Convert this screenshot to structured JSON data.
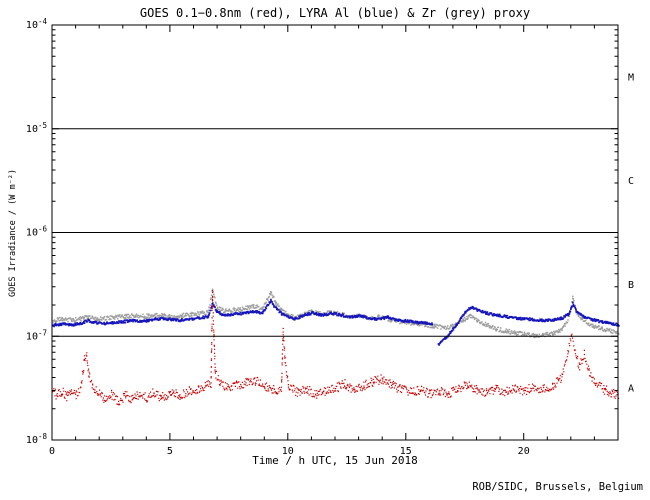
{
  "footer": {
    "credit": "ROB/SIDC, Brussels, Belgium"
  },
  "chart_data": {
    "type": "scatter",
    "title": "GOES 0.1−0.8nm (red), LYRA Al (blue) & Zr (grey) proxy",
    "xlabel": "Time / h UTC, 15 Jun 2018",
    "ylabel": "GOES Irradiance / (W m⁻²)",
    "axis_color": "#000000",
    "x_range": [
      0,
      24
    ],
    "x_major_ticks": [
      0,
      5,
      10,
      15,
      20
    ],
    "x_minor_step": 1,
    "y_decade_exponents": [
      -4,
      -5,
      -6,
      -7,
      -8
    ],
    "y_log_range": [
      -8,
      -4
    ],
    "grid": "off",
    "legend": "in title",
    "hlines": [
      1e-05,
      1e-06,
      1e-07
    ],
    "flare_classes": [
      {
        "label": "M",
        "between": [
          1e-05,
          0.0001
        ]
      },
      {
        "label": "C",
        "between": [
          1e-06,
          1e-05
        ]
      },
      {
        "label": "B",
        "between": [
          1e-07,
          1e-06
        ]
      },
      {
        "label": "A",
        "between": [
          1e-08,
          1e-07
        ]
      }
    ],
    "series": [
      {
        "name": "LYRA Zr proxy",
        "color": "#9e9e9e",
        "dot_size": 1.5,
        "jitter": 0.02,
        "segments": [
          [
            [
              0,
              1.44e-07
            ],
            [
              0.4,
              1.49e-07
            ],
            [
              0.8,
              1.46e-07
            ],
            [
              1.2,
              1.5e-07
            ],
            [
              1.5,
              1.55e-07
            ],
            [
              1.9,
              1.5e-07
            ],
            [
              2.3,
              1.52e-07
            ],
            [
              2.7,
              1.55e-07
            ],
            [
              3.1,
              1.58e-07
            ],
            [
              3.5,
              1.61e-07
            ],
            [
              3.9,
              1.58e-07
            ],
            [
              4.3,
              1.62e-07
            ],
            [
              4.7,
              1.6e-07
            ],
            [
              5.1,
              1.57e-07
            ],
            [
              5.5,
              1.61e-07
            ],
            [
              5.9,
              1.65e-07
            ],
            [
              6.3,
              1.69e-07
            ],
            [
              6.6,
              1.74e-07
            ],
            [
              6.78,
              2.9e-07
            ],
            [
              6.95,
              1.95e-07
            ],
            [
              7.3,
              1.78e-07
            ],
            [
              7.7,
              1.82e-07
            ],
            [
              8.1,
              1.88e-07
            ],
            [
              8.5,
              1.98e-07
            ],
            [
              8.9,
              1.88e-07
            ],
            [
              9.25,
              2.7e-07
            ],
            [
              9.45,
              2.15e-07
            ],
            [
              9.7,
              1.82e-07
            ],
            [
              10.0,
              1.62e-07
            ],
            [
              10.3,
              1.52e-07
            ],
            [
              10.7,
              1.66e-07
            ],
            [
              11.0,
              1.76e-07
            ],
            [
              11.4,
              1.66e-07
            ],
            [
              11.8,
              1.72e-07
            ],
            [
              12.2,
              1.66e-07
            ],
            [
              12.6,
              1.58e-07
            ],
            [
              13.0,
              1.62e-07
            ],
            [
              13.4,
              1.52e-07
            ],
            [
              13.8,
              1.56e-07
            ],
            [
              14.2,
              1.48e-07
            ],
            [
              14.6,
              1.42e-07
            ],
            [
              15.0,
              1.38e-07
            ],
            [
              15.4,
              1.34e-07
            ],
            [
              15.8,
              1.3e-07
            ],
            [
              16.2,
              1.27e-07
            ],
            [
              16.6,
              1.23e-07
            ],
            [
              17.0,
              1.28e-07
            ],
            [
              17.4,
              1.45e-07
            ],
            [
              17.7,
              1.58e-07
            ],
            [
              18.0,
              1.44e-07
            ],
            [
              18.4,
              1.3e-07
            ],
            [
              18.8,
              1.2e-07
            ],
            [
              19.2,
              1.14e-07
            ],
            [
              19.6,
              1.1e-07
            ],
            [
              20.0,
              1.06e-07
            ],
            [
              20.4,
              1.03e-07
            ],
            [
              20.8,
              1.05e-07
            ],
            [
              21.2,
              1.08e-07
            ],
            [
              21.6,
              1.18e-07
            ],
            [
              21.9,
              1.55e-07
            ],
            [
              22.05,
              2.4e-07
            ],
            [
              22.2,
              1.75e-07
            ],
            [
              22.5,
              1.45e-07
            ],
            [
              22.9,
              1.28e-07
            ],
            [
              23.3,
              1.2e-07
            ],
            [
              23.7,
              1.14e-07
            ],
            [
              24,
              1.1e-07
            ]
          ]
        ]
      },
      {
        "name": "LYRA Al proxy",
        "color": "#1515bb",
        "dot_size": 1.7,
        "jitter": 0.012,
        "segments": [
          [
            [
              0,
              1.3e-07
            ],
            [
              0.4,
              1.34e-07
            ],
            [
              0.8,
              1.31e-07
            ],
            [
              1.2,
              1.36e-07
            ],
            [
              1.5,
              1.44e-07
            ],
            [
              1.8,
              1.38e-07
            ],
            [
              2.2,
              1.35e-07
            ],
            [
              2.6,
              1.38e-07
            ],
            [
              3.0,
              1.41e-07
            ],
            [
              3.4,
              1.44e-07
            ],
            [
              3.8,
              1.42e-07
            ],
            [
              4.2,
              1.47e-07
            ],
            [
              4.6,
              1.51e-07
            ],
            [
              5.0,
              1.48e-07
            ],
            [
              5.4,
              1.45e-07
            ],
            [
              5.8,
              1.49e-07
            ],
            [
              6.2,
              1.53e-07
            ],
            [
              6.6,
              1.58e-07
            ],
            [
              6.78,
              2.15e-07
            ],
            [
              6.95,
              1.75e-07
            ],
            [
              7.3,
              1.62e-07
            ],
            [
              7.7,
              1.66e-07
            ],
            [
              8.1,
              1.7e-07
            ],
            [
              8.5,
              1.77e-07
            ],
            [
              8.9,
              1.71e-07
            ],
            [
              9.25,
              2.25e-07
            ],
            [
              9.4,
              1.95e-07
            ],
            [
              9.7,
              1.68e-07
            ],
            [
              10.0,
              1.56e-07
            ],
            [
              10.3,
              1.5e-07
            ],
            [
              10.7,
              1.63e-07
            ],
            [
              11.0,
              1.71e-07
            ],
            [
              11.4,
              1.62e-07
            ],
            [
              11.8,
              1.7e-07
            ],
            [
              12.2,
              1.64e-07
            ],
            [
              12.6,
              1.56e-07
            ],
            [
              13.0,
              1.6e-07
            ],
            [
              13.4,
              1.53e-07
            ],
            [
              13.8,
              1.49e-07
            ],
            [
              14.2,
              1.55e-07
            ],
            [
              14.6,
              1.46e-07
            ],
            [
              15.0,
              1.43e-07
            ],
            [
              15.4,
              1.39e-07
            ],
            [
              15.8,
              1.36e-07
            ],
            [
              16.1,
              1.34e-07
            ]
          ],
          [
            [
              16.35,
              8.5e-08
            ],
            [
              16.7,
              1e-07
            ],
            [
              17.1,
              1.3e-07
            ],
            [
              17.5,
              1.75e-07
            ],
            [
              17.75,
              1.95e-07
            ],
            [
              18.0,
              1.82e-07
            ],
            [
              18.4,
              1.7e-07
            ],
            [
              18.8,
              1.63e-07
            ],
            [
              19.2,
              1.58e-07
            ],
            [
              19.6,
              1.53e-07
            ],
            [
              20.0,
              1.5e-07
            ],
            [
              20.4,
              1.47e-07
            ],
            [
              20.8,
              1.45e-07
            ],
            [
              21.2,
              1.46e-07
            ],
            [
              21.6,
              1.52e-07
            ],
            [
              21.9,
              1.68e-07
            ],
            [
              22.05,
              2.1e-07
            ],
            [
              22.2,
              1.78e-07
            ],
            [
              22.5,
              1.58e-07
            ],
            [
              22.9,
              1.47e-07
            ],
            [
              23.3,
              1.4e-07
            ],
            [
              23.7,
              1.35e-07
            ],
            [
              24,
              1.31e-07
            ]
          ]
        ]
      },
      {
        "name": "GOES 0.1-0.8nm",
        "color": "#cc0000",
        "dot_size": 1.2,
        "jitter": 0.045,
        "segments": [
          [
            [
              0,
              3.1e-08
            ],
            [
              0.2,
              2.7e-08
            ],
            [
              0.4,
              3e-08
            ],
            [
              0.6,
              2.6e-08
            ],
            [
              0.8,
              2.9e-08
            ],
            [
              1.0,
              2.8e-08
            ],
            [
              1.2,
              3.2e-08
            ],
            [
              1.35,
              6e-08
            ],
            [
              1.45,
              6.8e-08
            ],
            [
              1.55,
              4.2e-08
            ],
            [
              1.7,
              3.4e-08
            ],
            [
              1.9,
              2.9e-08
            ],
            [
              2.2,
              2.5e-08
            ],
            [
              2.5,
              2.8e-08
            ],
            [
              2.8,
              2.4e-08
            ],
            [
              3.1,
              2.7e-08
            ],
            [
              3.4,
              2.5e-08
            ],
            [
              3.7,
              2.8e-08
            ],
            [
              4.0,
              2.6e-08
            ],
            [
              4.3,
              2.9e-08
            ],
            [
              4.6,
              2.6e-08
            ],
            [
              5.0,
              2.9e-08
            ],
            [
              5.4,
              2.7e-08
            ],
            [
              5.8,
              3e-08
            ],
            [
              6.2,
              3.1e-08
            ],
            [
              6.5,
              3.4e-08
            ],
            [
              6.72,
              3.6e-08
            ],
            [
              6.78,
              2.6e-07
            ],
            [
              6.84,
              1.1e-07
            ],
            [
              6.9,
              4.5e-08
            ],
            [
              7.1,
              3.6e-08
            ],
            [
              7.4,
              3.2e-08
            ],
            [
              7.8,
              3.4e-08
            ],
            [
              8.2,
              3.6e-08
            ],
            [
              8.6,
              3.8e-08
            ],
            [
              9.0,
              3.4e-08
            ],
            [
              9.4,
              3.1e-08
            ],
            [
              9.7,
              3e-08
            ],
            [
              9.78,
              1.15e-07
            ],
            [
              9.86,
              6e-08
            ],
            [
              10.0,
              3.3e-08
            ],
            [
              10.4,
              2.9e-08
            ],
            [
              10.8,
              3.1e-08
            ],
            [
              11.2,
              2.8e-08
            ],
            [
              11.6,
              3e-08
            ],
            [
              12.0,
              3.2e-08
            ],
            [
              12.4,
              3.5e-08
            ],
            [
              12.8,
              3.1e-08
            ],
            [
              13.2,
              3.4e-08
            ],
            [
              13.6,
              3.7e-08
            ],
            [
              14.0,
              3.9e-08
            ],
            [
              14.4,
              3.4e-08
            ],
            [
              14.8,
              3.1e-08
            ],
            [
              15.2,
              2.9e-08
            ],
            [
              15.6,
              3.1e-08
            ],
            [
              16.0,
              2.8e-08
            ],
            [
              16.4,
              3e-08
            ],
            [
              16.8,
              2.8e-08
            ],
            [
              17.2,
              3.2e-08
            ],
            [
              17.6,
              3.4e-08
            ],
            [
              18.0,
              3.1e-08
            ],
            [
              18.4,
              2.9e-08
            ],
            [
              18.8,
              3.1e-08
            ],
            [
              19.2,
              2.9e-08
            ],
            [
              19.6,
              3.2e-08
            ],
            [
              20.0,
              3e-08
            ],
            [
              20.4,
              3.3e-08
            ],
            [
              20.8,
              3.1e-08
            ],
            [
              21.2,
              3.4e-08
            ],
            [
              21.6,
              4e-08
            ],
            [
              21.85,
              7.5e-08
            ],
            [
              22.0,
              1.05e-07
            ],
            [
              22.15,
              7e-08
            ],
            [
              22.35,
              5.2e-08
            ],
            [
              22.55,
              6.8e-08
            ],
            [
              22.75,
              4.6e-08
            ],
            [
              23.0,
              3.6e-08
            ],
            [
              23.4,
              3.1e-08
            ],
            [
              23.7,
              2.9e-08
            ],
            [
              24,
              2.7e-08
            ]
          ]
        ]
      }
    ]
  }
}
